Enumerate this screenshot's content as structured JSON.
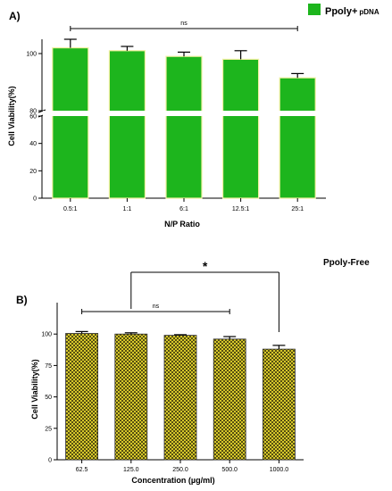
{
  "chart_data": [
    {
      "type": "bar",
      "panel_label": "A)",
      "title": "",
      "ylabel": "Cell Viability(%)",
      "xlabel": "N/P Ratio",
      "categories": [
        "0.5:1",
        "1:1",
        "6:1",
        "12.5:1",
        "25:1"
      ],
      "series": [
        {
          "name": "Ppoly+ pDNA",
          "name_main": "Ppoly+",
          "name_sub": "pDNA",
          "values": [
            102,
            101,
            99,
            98,
            91.5
          ],
          "errors": [
            3,
            1.5,
            1.5,
            3,
            1.5
          ],
          "color": "#1db51d",
          "bar_edge_color": "#f0f0a0"
        }
      ],
      "axis_break": [
        60,
        80
      ],
      "ylim_upper": [
        80,
        105
      ],
      "ylim_lower": [
        0,
        60
      ],
      "yticks_upper": [
        80,
        100
      ],
      "yticks_lower": [
        0,
        20,
        40,
        60
      ],
      "annotations": [
        {
          "text": "ns",
          "from": 0,
          "to": 4
        }
      ],
      "legend": "top-right",
      "grid": false
    },
    {
      "type": "bar",
      "panel_label": "B)",
      "title": "Ppoly-Free",
      "ylabel": "Cell Viability(%)",
      "xlabel": "Concentration (µg/ml)",
      "categories": [
        "62.5",
        "125.0",
        "250.0",
        "500.0",
        "1000.0"
      ],
      "series": [
        {
          "values": [
            100.5,
            100,
            99,
            96,
            88
          ],
          "errors": [
            1.5,
            1,
            0.5,
            2,
            3
          ],
          "color": "#d0c020",
          "pattern": "checkered",
          "pattern_colors": [
            "#d6c72a",
            "#565010"
          ]
        }
      ],
      "ylim": [
        0,
        125
      ],
      "yticks": [
        0,
        25,
        50,
        75,
        100
      ],
      "annotations": [
        {
          "text": "ns",
          "from": 0,
          "to": 3
        },
        {
          "text": "*",
          "from": 1,
          "to": 4
        }
      ],
      "grid": false
    }
  ]
}
